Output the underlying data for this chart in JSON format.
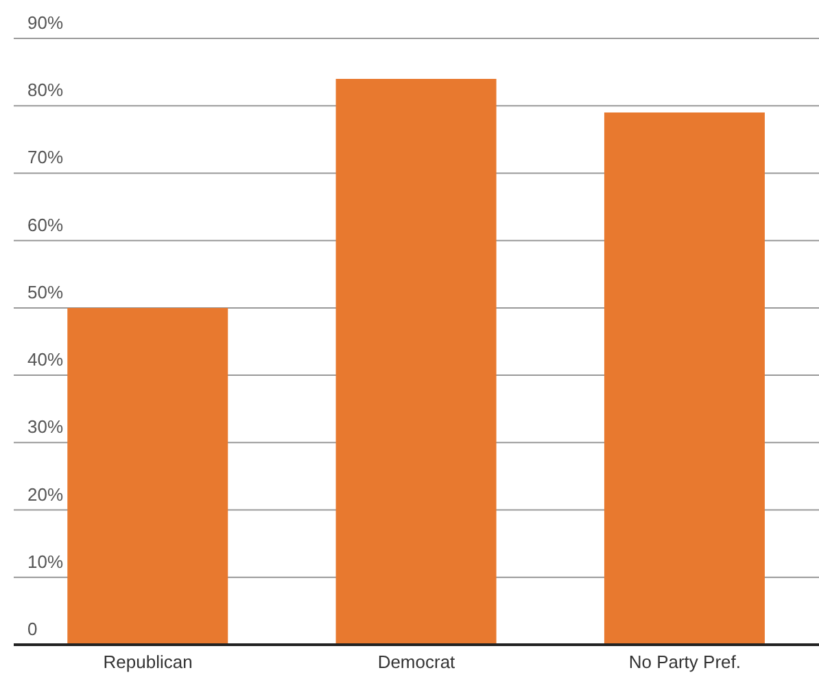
{
  "chart_data": {
    "type": "bar",
    "categories": [
      "Republican",
      "Democrat",
      "No Party Pref."
    ],
    "values": [
      50,
      84,
      79
    ],
    "color": "#e8792f",
    "ylim": [
      0,
      90
    ],
    "yticks": [
      {
        "value": 0,
        "label": "0"
      },
      {
        "value": 10,
        "label": "10%"
      },
      {
        "value": 20,
        "label": "20%"
      },
      {
        "value": 30,
        "label": "30%"
      },
      {
        "value": 40,
        "label": "40%"
      },
      {
        "value": 50,
        "label": "50%"
      },
      {
        "value": 60,
        "label": "60%"
      },
      {
        "value": 70,
        "label": "70%"
      },
      {
        "value": 80,
        "label": "80%"
      },
      {
        "value": 90,
        "label": "90%"
      }
    ],
    "grid": "y"
  }
}
